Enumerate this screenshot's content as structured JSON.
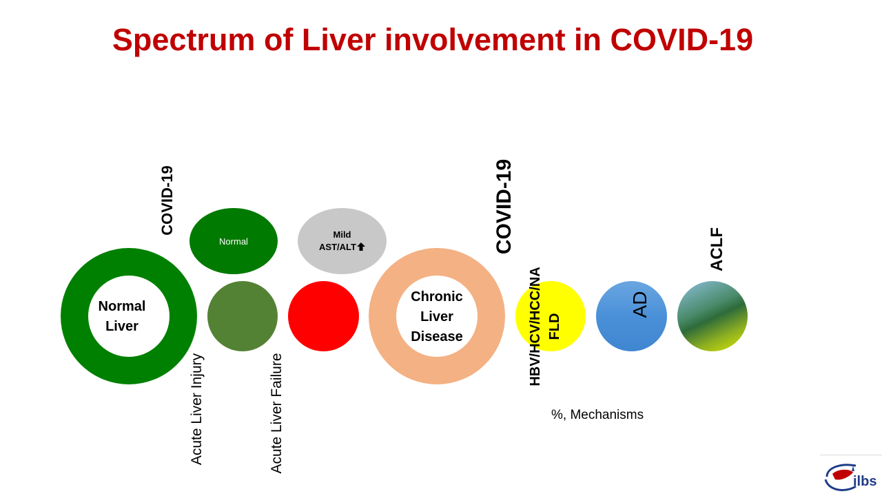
{
  "slide": {
    "title": "Spectrum of Liver involvement in COVID-19",
    "covid_left": "COVID-19",
    "covid_right": "COVID-19",
    "normal_liver": {
      "line1": "Normal",
      "line2": "Liver"
    },
    "normal_ellipse": "Normal",
    "mild_ellipse": {
      "line1": "Mild",
      "line2": "AST/ALT",
      "arrow": "🡅"
    },
    "acute_liver_injury": "Acute Liver Injury",
    "acute_liver_failure": "Acute Liver Failure",
    "chronic": {
      "line1": "Chronic",
      "line2": "Liver",
      "line3": "Disease"
    },
    "etiology_line1": "HBV/HCV/HCC/NA",
    "etiology_line2": "FLD",
    "ad": "AD",
    "aclf": "ACLF",
    "mechanisms": "%, Mechanisms",
    "logo_text": "ilbs"
  },
  "colors": {
    "title": "#c00000",
    "normal_ring": "#008000",
    "normal_ellipse": "#007a00",
    "mild_ellipse": "#c8c8c8",
    "acute_injury": "#548235",
    "acute_failure": "#ff0000",
    "chronic_ring": "#f4b183",
    "yellow": "#ffff00",
    "ad_blue": "#4a90d9",
    "aclf_gradient": [
      "#7fb3d5",
      "#2e6b3a",
      "#d4e600"
    ]
  }
}
